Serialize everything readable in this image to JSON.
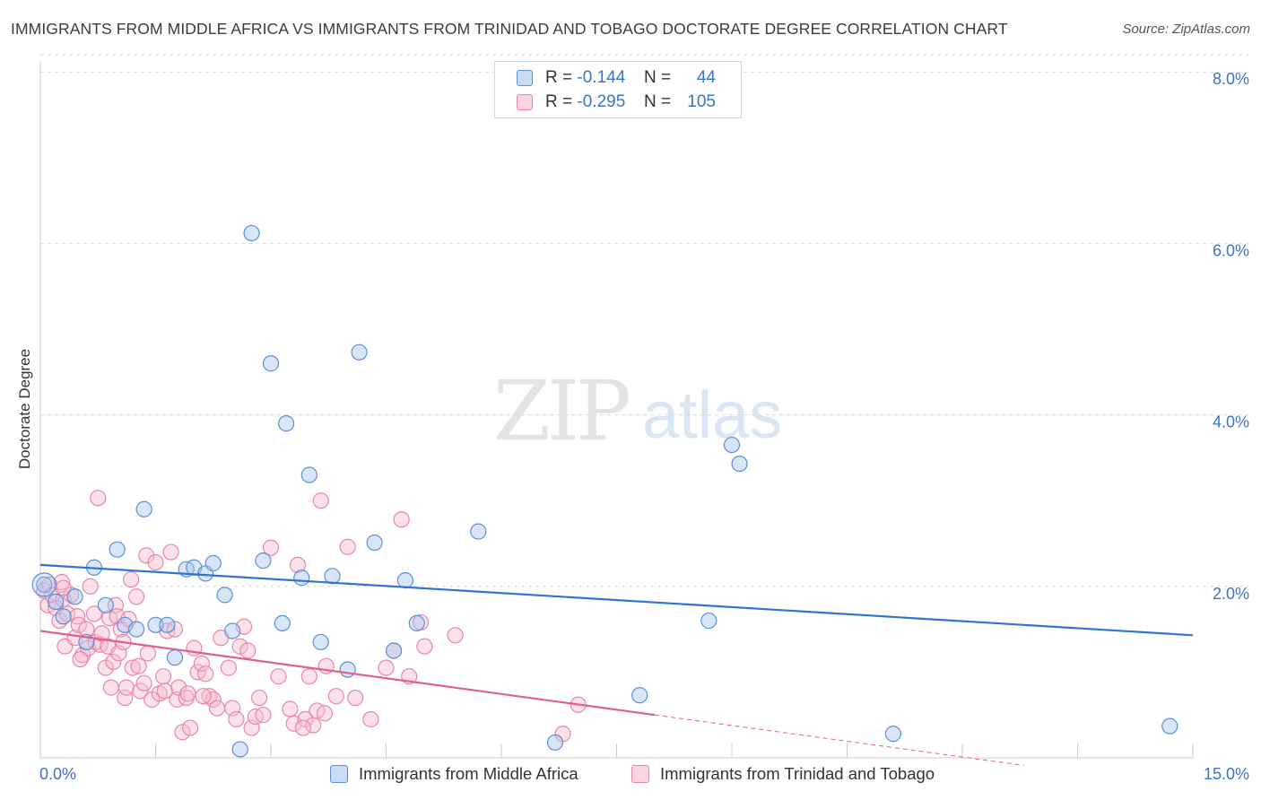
{
  "title": "IMMIGRANTS FROM MIDDLE AFRICA VS IMMIGRANTS FROM TRINIDAD AND TOBAGO DOCTORATE DEGREE CORRELATION CHART",
  "source": "Source: ZipAtlas.com",
  "watermark": {
    "zip": "ZIP",
    "atlas": "atlas"
  },
  "colors": {
    "blue_fill": "#aac8f0",
    "blue_stroke": "#5b8fd6",
    "blue_line": "#2f74d0",
    "pink_fill": "#f7bcd0",
    "pink_stroke": "#e886a8",
    "pink_line": "#e0608c",
    "axis_text": "#3b73c8",
    "grid": "#d9d9d9"
  },
  "legend_top": [
    {
      "r_label": "R =",
      "r_value": "-0.144",
      "n_label": "N =",
      "n_value": "44"
    },
    {
      "r_label": "R =",
      "r_value": "-0.295",
      "n_label": "N =",
      "n_value": "105"
    }
  ],
  "chart_data": {
    "type": "scatter",
    "title": "IMMIGRANTS FROM MIDDLE AFRICA VS IMMIGRANTS FROM TRINIDAD AND TOBAGO DOCTORATE DEGREE CORRELATION CHART",
    "xlabel": "",
    "ylabel": "Doctorate Degree",
    "xlim": [
      0,
      15
    ],
    "ylim": [
      0,
      8.2
    ],
    "x_tick_labels": [
      "0.0%",
      "15.0%"
    ],
    "y_ticks": [
      2,
      4,
      6,
      8
    ],
    "y_tick_labels": [
      "2.0%",
      "4.0%",
      "6.0%",
      "8.0%"
    ],
    "grid": true,
    "series": [
      {
        "name": "Immigrants from Middle Africa",
        "color": "blue",
        "r": -0.144,
        "n": 44,
        "trend": {
          "x0": 0,
          "y0": 2.25,
          "x1": 15,
          "y1": 1.43
        },
        "points": [
          [
            0.05,
            2.02
          ],
          [
            0.2,
            1.82
          ],
          [
            0.3,
            1.65
          ],
          [
            0.45,
            1.88
          ],
          [
            0.6,
            1.35
          ],
          [
            0.7,
            2.22
          ],
          [
            0.85,
            1.78
          ],
          [
            1.0,
            2.43
          ],
          [
            1.1,
            1.55
          ],
          [
            1.25,
            1.5
          ],
          [
            1.35,
            2.9
          ],
          [
            1.5,
            1.55
          ],
          [
            1.65,
            1.55
          ],
          [
            1.75,
            1.17
          ],
          [
            1.9,
            2.2
          ],
          [
            2.0,
            2.22
          ],
          [
            2.15,
            2.15
          ],
          [
            2.25,
            2.27
          ],
          [
            2.4,
            1.9
          ],
          [
            2.5,
            1.48
          ],
          [
            2.6,
            0.1
          ],
          [
            2.75,
            6.12
          ],
          [
            2.9,
            2.3
          ],
          [
            3.0,
            4.6
          ],
          [
            3.15,
            1.57
          ],
          [
            3.2,
            3.9
          ],
          [
            3.4,
            2.1
          ],
          [
            3.5,
            3.3
          ],
          [
            3.65,
            1.35
          ],
          [
            3.8,
            2.12
          ],
          [
            4.0,
            1.03
          ],
          [
            4.15,
            4.73
          ],
          [
            4.35,
            2.51
          ],
          [
            4.6,
            1.25
          ],
          [
            4.75,
            2.07
          ],
          [
            4.9,
            1.57
          ],
          [
            5.7,
            2.64
          ],
          [
            6.7,
            0.18
          ],
          [
            7.8,
            0.73
          ],
          [
            8.7,
            1.6
          ],
          [
            9.0,
            3.65
          ],
          [
            9.1,
            3.43
          ],
          [
            11.1,
            0.28
          ],
          [
            14.7,
            0.37
          ]
        ]
      },
      {
        "name": "Immigrants from Trinidad and Tobago",
        "color": "pink",
        "r": -0.295,
        "n": 105,
        "trend": {
          "x0": 0,
          "y0": 1.48,
          "x1": 8.0,
          "y1": 0.5,
          "dash_to_x": 12.8
        },
        "points": [
          [
            0.05,
            1.95
          ],
          [
            0.1,
            1.78
          ],
          [
            0.12,
            2.02
          ],
          [
            0.15,
            1.9
          ],
          [
            0.2,
            1.75
          ],
          [
            0.25,
            1.6
          ],
          [
            0.28,
            2.05
          ],
          [
            0.3,
            1.85
          ],
          [
            0.32,
            1.3
          ],
          [
            0.35,
            1.68
          ],
          [
            0.4,
            1.9
          ],
          [
            0.45,
            1.4
          ],
          [
            0.48,
            1.65
          ],
          [
            0.5,
            1.55
          ],
          [
            0.55,
            1.2
          ],
          [
            0.6,
            1.5
          ],
          [
            0.62,
            1.28
          ],
          [
            0.65,
            2.0
          ],
          [
            0.7,
            1.68
          ],
          [
            0.72,
            1.35
          ],
          [
            0.75,
            3.03
          ],
          [
            0.78,
            1.32
          ],
          [
            0.8,
            1.45
          ],
          [
            0.85,
            1.05
          ],
          [
            0.88,
            1.3
          ],
          [
            0.9,
            1.63
          ],
          [
            0.92,
            0.82
          ],
          [
            0.95,
            1.12
          ],
          [
            0.98,
            1.78
          ],
          [
            1.0,
            1.65
          ],
          [
            1.02,
            1.22
          ],
          [
            1.05,
            1.5
          ],
          [
            1.08,
            1.35
          ],
          [
            1.1,
            0.7
          ],
          [
            1.12,
            0.82
          ],
          [
            1.15,
            1.62
          ],
          [
            1.18,
            2.08
          ],
          [
            1.2,
            1.05
          ],
          [
            1.25,
            1.88
          ],
          [
            1.28,
            1.07
          ],
          [
            1.3,
            0.78
          ],
          [
            1.35,
            0.87
          ],
          [
            1.38,
            2.36
          ],
          [
            1.4,
            1.22
          ],
          [
            1.45,
            0.68
          ],
          [
            1.5,
            2.28
          ],
          [
            1.55,
            0.75
          ],
          [
            1.6,
            0.95
          ],
          [
            1.65,
            1.48
          ],
          [
            1.7,
            2.4
          ],
          [
            1.75,
            1.5
          ],
          [
            1.78,
            0.68
          ],
          [
            1.8,
            0.82
          ],
          [
            1.85,
            0.3
          ],
          [
            1.9,
            0.7
          ],
          [
            1.92,
            0.75
          ],
          [
            1.95,
            0.35
          ],
          [
            2.0,
            1.28
          ],
          [
            2.05,
            1.0
          ],
          [
            2.1,
            1.1
          ],
          [
            2.15,
            0.98
          ],
          [
            2.2,
            0.72
          ],
          [
            2.25,
            0.68
          ],
          [
            2.3,
            0.58
          ],
          [
            2.35,
            1.4
          ],
          [
            2.45,
            1.05
          ],
          [
            2.5,
            0.58
          ],
          [
            2.55,
            0.45
          ],
          [
            2.6,
            1.3
          ],
          [
            2.65,
            1.53
          ],
          [
            2.7,
            1.25
          ],
          [
            2.75,
            0.35
          ],
          [
            2.8,
            0.48
          ],
          [
            2.85,
            0.7
          ],
          [
            2.9,
            0.5
          ],
          [
            3.0,
            2.45
          ],
          [
            3.1,
            0.95
          ],
          [
            3.25,
            0.57
          ],
          [
            3.3,
            0.4
          ],
          [
            3.35,
            2.25
          ],
          [
            3.45,
            0.45
          ],
          [
            3.5,
            0.95
          ],
          [
            3.55,
            0.38
          ],
          [
            3.6,
            0.55
          ],
          [
            3.65,
            3.0
          ],
          [
            3.7,
            0.52
          ],
          [
            3.72,
            1.07
          ],
          [
            3.85,
            0.72
          ],
          [
            4.0,
            2.46
          ],
          [
            4.1,
            0.7
          ],
          [
            4.3,
            0.45
          ],
          [
            4.5,
            1.05
          ],
          [
            4.6,
            1.25
          ],
          [
            4.7,
            2.78
          ],
          [
            4.8,
            0.95
          ],
          [
            4.95,
            1.58
          ],
          [
            5.0,
            1.3
          ],
          [
            5.4,
            1.43
          ],
          [
            6.8,
            0.28
          ],
          [
            7.0,
            0.62
          ],
          [
            0.3,
            1.98
          ],
          [
            0.52,
            1.15
          ],
          [
            1.62,
            0.78
          ],
          [
            2.12,
            0.72
          ],
          [
            3.42,
            0.35
          ]
        ]
      }
    ]
  },
  "legend_bottom": [
    {
      "label": "Immigrants from Middle Africa",
      "color": "blue"
    },
    {
      "label": "Immigrants from Trinidad and Tobago",
      "color": "pink"
    }
  ]
}
